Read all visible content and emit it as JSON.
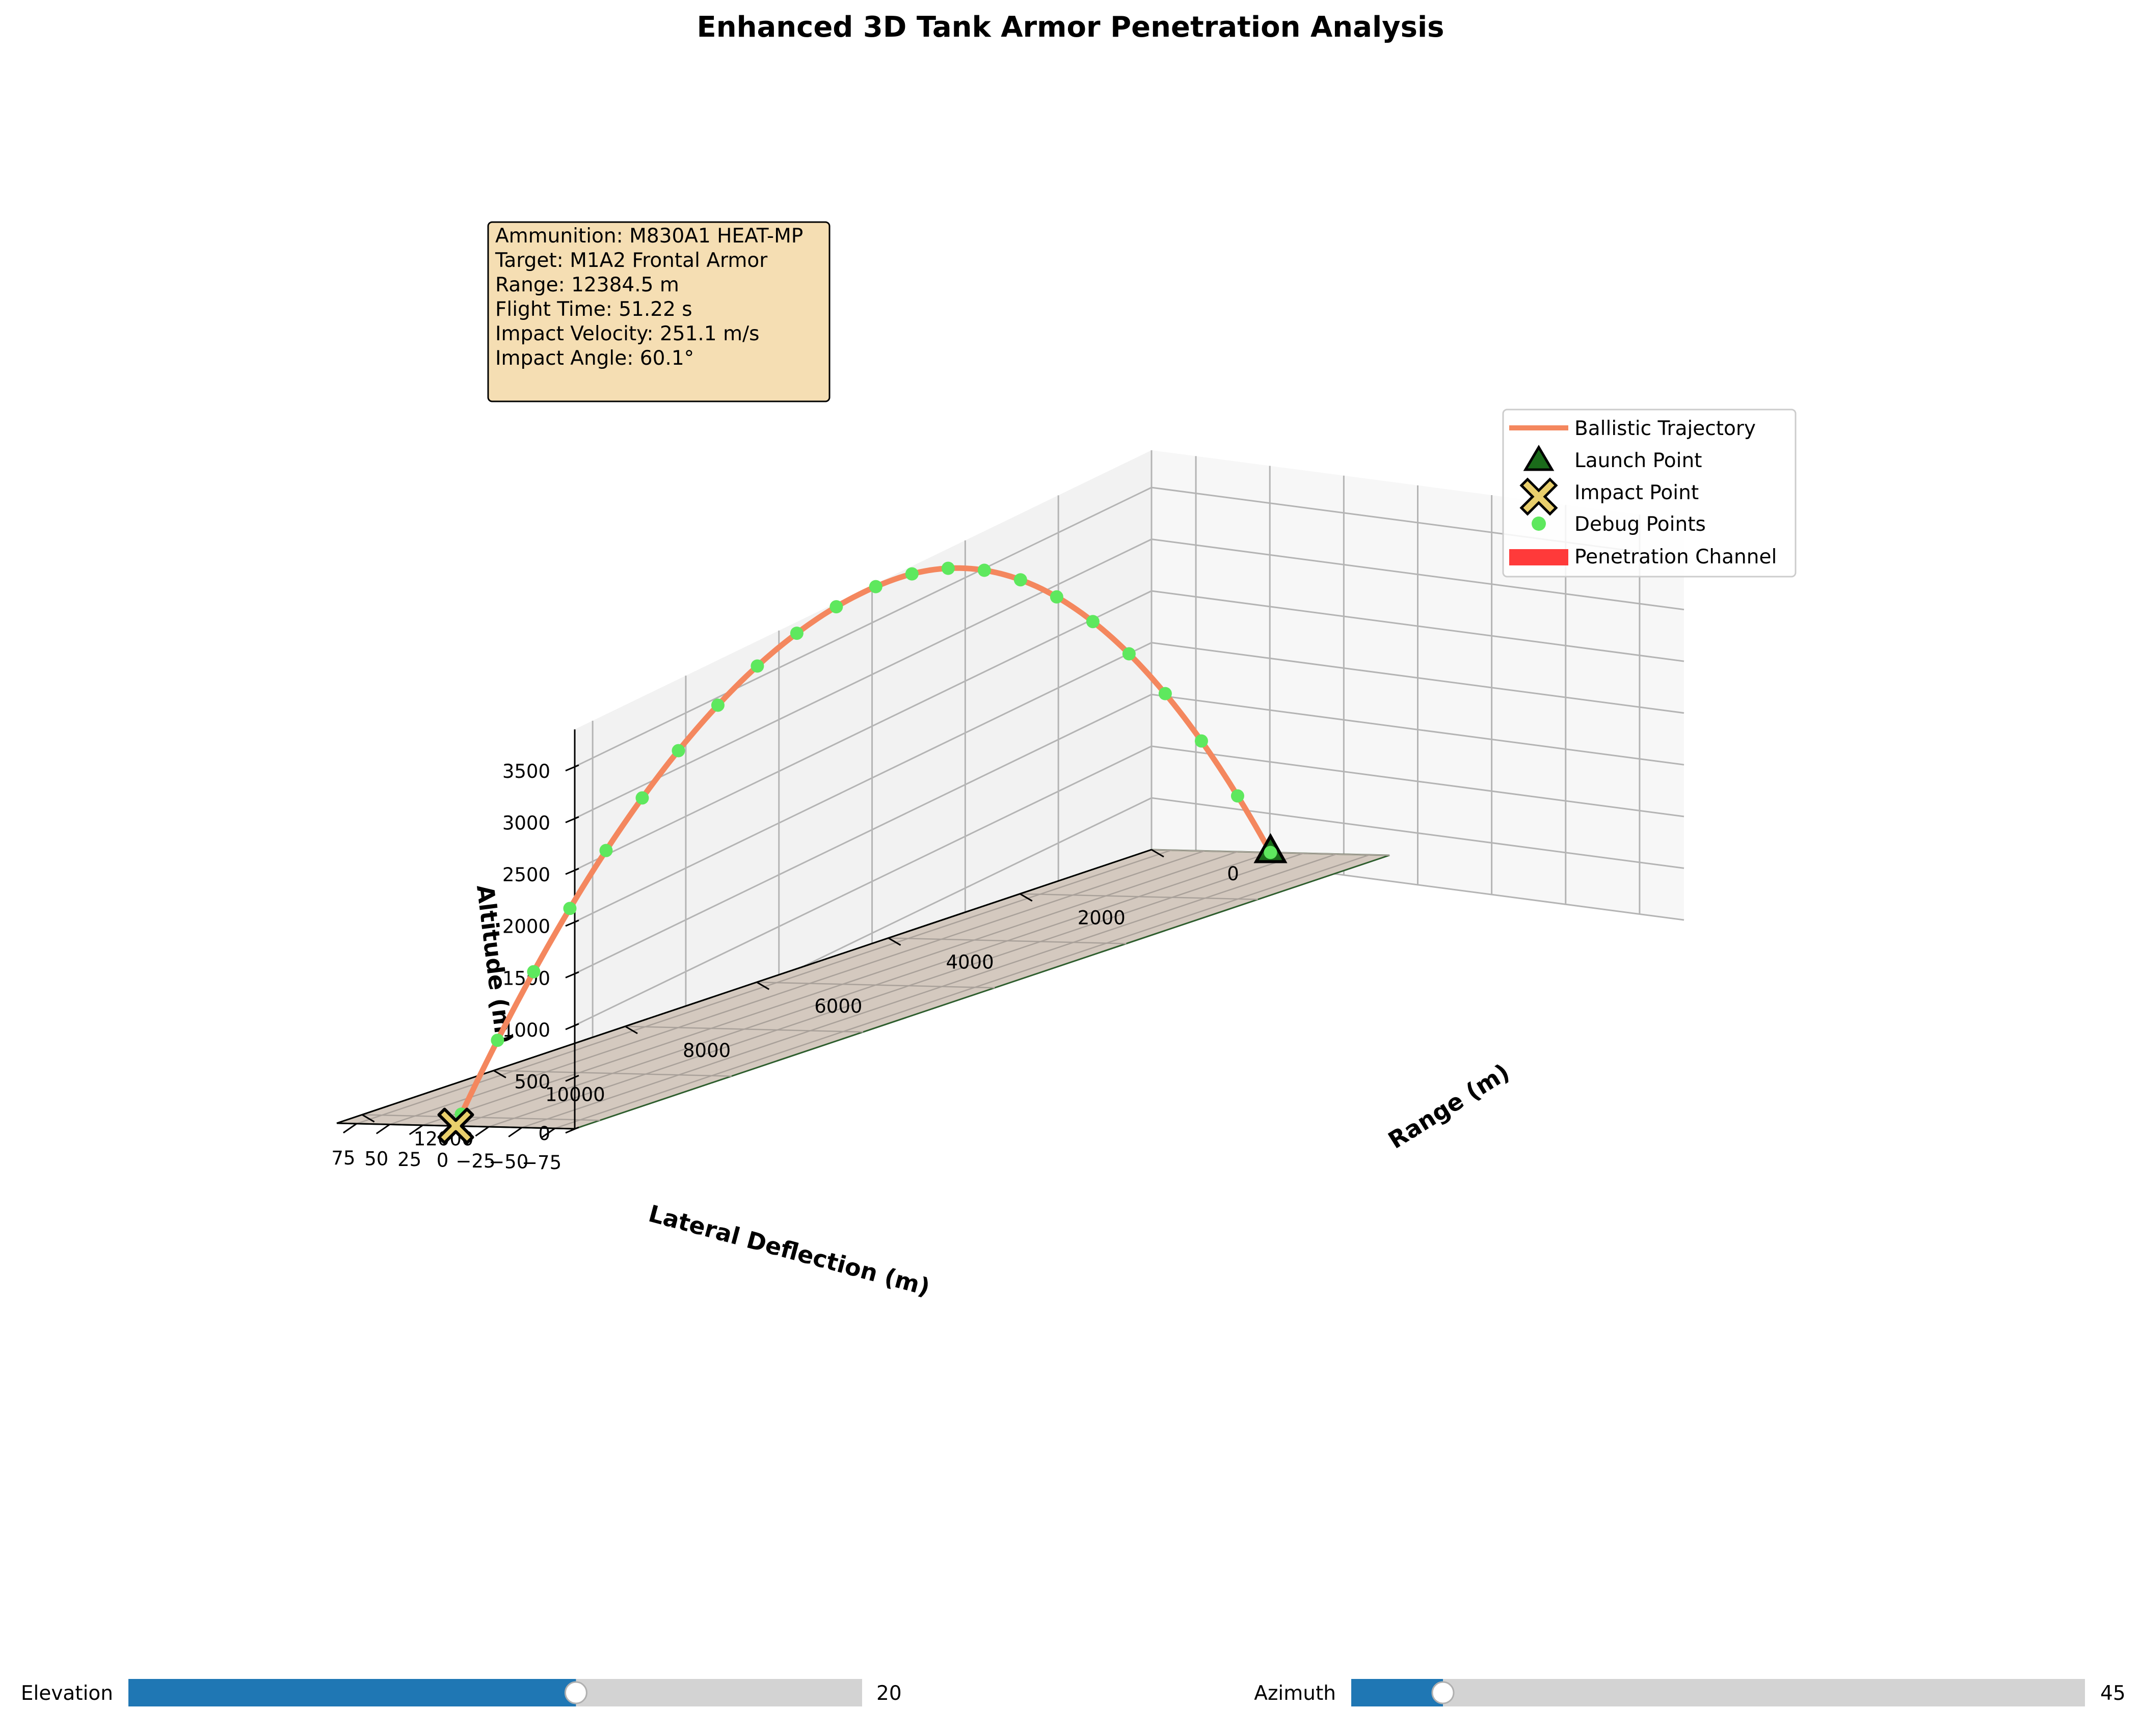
{
  "chart_data": {
    "type": "line",
    "projection": "3d",
    "title": "Enhanced 3D Tank Armor Penetration Analysis",
    "xlabel": "Range (m)",
    "ylabel": "Lateral Deflection (m)",
    "zlabel": "Altitude (m)",
    "xlim": [
      0,
      12384.5
    ],
    "ylim": [
      -90,
      90
    ],
    "zlim": [
      0,
      3860
    ],
    "x_ticks": [
      "0",
      "2000",
      "4000",
      "6000",
      "8000",
      "10000",
      "12000"
    ],
    "y_ticks": [
      "−75",
      "−50",
      "−25",
      "0",
      "25",
      "50",
      "75"
    ],
    "z_ticks": [
      "0",
      "500",
      "1000",
      "1500",
      "2000",
      "2500",
      "3000",
      "3500"
    ],
    "grid": true,
    "legend_position": "upper-right",
    "series": [
      {
        "name": "Ballistic Trajectory",
        "color": "#f4875e",
        "apex_x": 5650,
        "apex_z": 3860,
        "impact_x": 12384.5,
        "lateral": 0
      },
      {
        "name": "Launch Point",
        "color": "#1a6b1a",
        "marker": "triangle",
        "x": 0,
        "y": 0,
        "z": 0
      },
      {
        "name": "Impact Point",
        "color": "#e9cf6c",
        "marker": "x",
        "x": 12384.5,
        "y": 0,
        "z": 0
      },
      {
        "name": "Debug Points",
        "color": "#5ee85e",
        "marker": "circle",
        "x": [
          0,
          500,
          1050,
          1600,
          2150,
          2700,
          3250,
          3800,
          4350,
          4900,
          5450,
          6000,
          6600,
          7200,
          7800,
          8400,
          9000,
          9550,
          10100,
          10650,
          11200,
          11750,
          12300
        ]
      },
      {
        "name": "Penetration Channel",
        "color": "#ff3a3a"
      }
    ]
  },
  "info_box": {
    "lines": [
      "Ammunition: M830A1 HEAT-MP",
      "Target: M1A2 Frontal Armor",
      "Range: 12384.5 m",
      "Flight Time: 51.22 s",
      "Impact Velocity: 251.1 m/s",
      "Impact Angle: 60.1°"
    ]
  },
  "controls": {
    "elevation": {
      "label": "Elevation",
      "value": 20,
      "value_text": "20",
      "fill_fraction": 0.61
    },
    "azimuth": {
      "label": "Azimuth",
      "value": 45,
      "value_text": "45",
      "fill_fraction": 0.125
    }
  },
  "colors": {
    "floor": "#d4c9bf",
    "floor_edge": "#2e5e2e",
    "pane_left": "#f2f2f2",
    "pane_right": "#f7f7f7",
    "grid": "#b4b4b4",
    "info_bg": "#f5deb3",
    "slider_fill": "#1f77b4",
    "slider_track": "#d3d3d3"
  }
}
